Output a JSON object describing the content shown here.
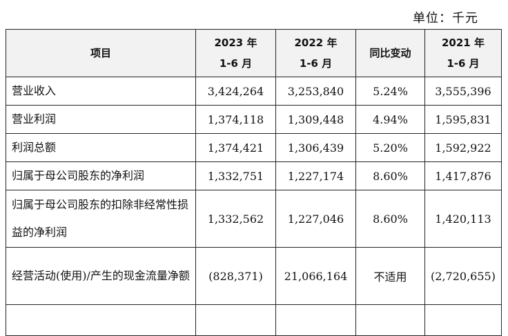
{
  "unit_label": "单位：千元",
  "header": {
    "item": "项目",
    "col_2023_line1": "2023 年",
    "col_2023_line2": "1-6 月",
    "col_2022_line1": "2022 年",
    "col_2022_line2": "1-6 月",
    "yoy": "同比变动",
    "col_2021_line1": "2021 年",
    "col_2021_line2": "1-6 月"
  },
  "rows": [
    {
      "label": "营业收入",
      "v2023": "3,424,264",
      "v2022": "3,253,840",
      "yoy": "5.24%",
      "v2021": "3,555,396"
    },
    {
      "label": "营业利润",
      "v2023": "1,374,118",
      "v2022": "1,309,448",
      "yoy": "4.94%",
      "v2021": "1,595,831"
    },
    {
      "label": "利润总额",
      "v2023": "1,374,421",
      "v2022": "1,306,439",
      "yoy": "5.20%",
      "v2021": "1,592,922"
    },
    {
      "label": "归属于母公司股东的净利润",
      "v2023": "1,332,751",
      "v2022": "1,227,174",
      "yoy": "8.60%",
      "v2021": "1,417,876"
    },
    {
      "label": "归属于母公司股东的扣除非经常性损益的净利润",
      "v2023": "1,332,562",
      "v2022": "1,227,046",
      "yoy": "8.60%",
      "v2021": "1,420,113"
    },
    {
      "label": "经营活动(使用)/产生的现金流量净额",
      "v2023": "(828,371)",
      "v2022": "21,066,164",
      "yoy": "不适用",
      "v2021": "(2,720,655)"
    }
  ]
}
